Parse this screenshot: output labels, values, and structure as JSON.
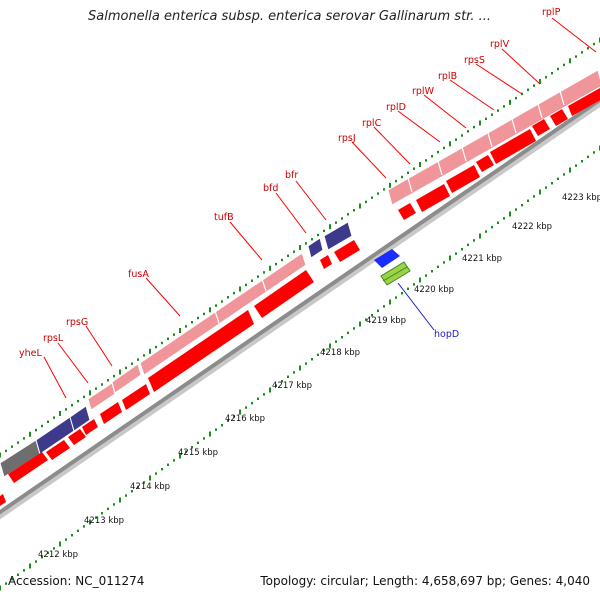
{
  "header": {
    "title": "Salmonella enterica subsp. enterica serovar Gallinarum str. ..."
  },
  "footer": {
    "accession": "Accession: NC_011274",
    "stats": "Topology: circular; Length: 4,658,697 bp; Genes: 4,040"
  },
  "colors": {
    "backbone": "#8c8c8c",
    "tick_dots": "#1a8c1a",
    "gene_red": "#ff0000",
    "gene_pink": "#f0959a",
    "gene_navy": "#3d3a8c",
    "gene_gray": "#6e6e6e",
    "gene_blue": "#1a2cff",
    "gene_green": "#9bd24a",
    "label_red": "#cc0000",
    "label_blue": "#1a1acc"
  },
  "scale": {
    "ticks": [
      {
        "label": "4212 kbp"
      },
      {
        "label": "4213 kbp"
      },
      {
        "label": "4214 kbp"
      },
      {
        "label": "4215 kbp"
      },
      {
        "label": "4216 kbp"
      },
      {
        "label": "4217 kbp"
      },
      {
        "label": "4218 kbp"
      },
      {
        "label": "4219 kbp"
      },
      {
        "label": "4220 kbp"
      },
      {
        "label": "4221 kbp"
      },
      {
        "label": "4222 kbp"
      },
      {
        "label": "4223 kbp"
      }
    ]
  },
  "genes": [
    {
      "name": "yheL",
      "color": "label_red"
    },
    {
      "name": "rpsL",
      "color": "label_red"
    },
    {
      "name": "rpsG",
      "color": "label_red"
    },
    {
      "name": "fusA",
      "color": "label_red"
    },
    {
      "name": "tufB",
      "color": "label_red"
    },
    {
      "name": "bfd",
      "color": "label_red"
    },
    {
      "name": "bfr",
      "color": "label_red"
    },
    {
      "name": "rpsJ",
      "color": "label_red"
    },
    {
      "name": "rplC",
      "color": "label_red"
    },
    {
      "name": "rplD",
      "color": "label_red"
    },
    {
      "name": "rplW",
      "color": "label_red"
    },
    {
      "name": "rplB",
      "color": "label_red"
    },
    {
      "name": "rpsS",
      "color": "label_red"
    },
    {
      "name": "rplV",
      "color": "label_red"
    },
    {
      "name": "rplP",
      "color": "label_red"
    },
    {
      "name": "hopD",
      "color": "label_blue"
    }
  ]
}
